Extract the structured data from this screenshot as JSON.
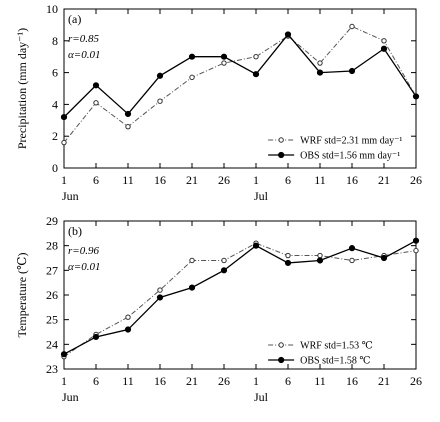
{
  "chart_data": [
    {
      "type": "line",
      "panel_label": "(a)",
      "ylabel": "Precipitation (mm day⁻¹)",
      "x_ticks": [
        "1",
        "6",
        "11",
        "16",
        "21",
        "26",
        "1",
        "6",
        "11",
        "16",
        "21",
        "26"
      ],
      "month_labels": [
        "Jun",
        "Jul"
      ],
      "ylim": [
        0,
        10
      ],
      "y_ticks": [
        0,
        2,
        4,
        6,
        8,
        10
      ],
      "stat_r": "r=0.85",
      "stat_alpha": "α=0.01",
      "legend_position": "bottom-right",
      "series": [
        {
          "name": "WRF",
          "legend": "WRF std=2.31 mm day⁻¹",
          "marker": "open-circle",
          "values": [
            1.6,
            4.1,
            2.6,
            4.2,
            5.7,
            6.6,
            7.0,
            8.3,
            6.6,
            8.9,
            8.0,
            4.5
          ]
        },
        {
          "name": "OBS",
          "legend": "OBS std=1.56 mm day⁻¹",
          "marker": "filled-circle",
          "values": [
            3.2,
            5.2,
            3.4,
            5.8,
            7.0,
            7.0,
            5.9,
            8.4,
            6.0,
            6.1,
            7.5,
            4.5
          ]
        }
      ]
    },
    {
      "type": "line",
      "panel_label": "(b)",
      "ylabel": "Temperature (℃)",
      "x_ticks": [
        "1",
        "6",
        "11",
        "16",
        "21",
        "26",
        "1",
        "6",
        "11",
        "16",
        "21",
        "26"
      ],
      "month_labels": [
        "Jun",
        "Jul"
      ],
      "ylim": [
        23,
        29
      ],
      "y_ticks": [
        23,
        24,
        25,
        26,
        27,
        28,
        29
      ],
      "stat_r": "r=0.96",
      "stat_alpha": "α=0.01",
      "legend_position": "bottom-right",
      "series": [
        {
          "name": "WRF",
          "legend": "WRF std=1.53 ℃",
          "marker": "open-circle",
          "values": [
            23.5,
            24.4,
            25.1,
            26.2,
            27.4,
            27.4,
            28.1,
            27.6,
            27.6,
            27.4,
            27.6,
            27.8
          ]
        },
        {
          "name": "OBS",
          "legend": "OBS std=1.58 ℃",
          "marker": "filled-circle",
          "values": [
            23.6,
            24.3,
            24.6,
            25.9,
            26.3,
            27.0,
            28.0,
            27.3,
            27.4,
            27.9,
            27.5,
            28.2
          ]
        }
      ]
    }
  ]
}
